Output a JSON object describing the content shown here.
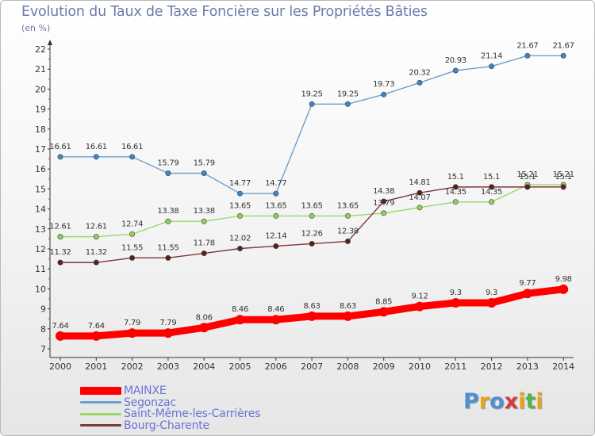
{
  "title": "Evolution du Taux de Taxe Foncière sur les Propriétés Bâties",
  "unit_label": "(en %)",
  "logo": {
    "text": "Proxiti",
    "letters": [
      {
        "ch": "P",
        "color": "#4f8fd0"
      },
      {
        "ch": "r",
        "color": "#e8a21c"
      },
      {
        "ch": "o",
        "color": "#4f8fd0"
      },
      {
        "ch": "x",
        "color": "#d8383b"
      },
      {
        "ch": "i",
        "color": "#e8a21c"
      },
      {
        "ch": "t",
        "color": "#56b348"
      },
      {
        "ch": "i",
        "color": "#e8a21c"
      }
    ]
  },
  "chart_data": {
    "type": "line",
    "title": "Evolution du Taux de Taxe Foncière sur les Propriétés Bâties",
    "ylabel": "(en %)",
    "xlabel": "",
    "x": [
      "2000",
      "2001",
      "2002",
      "2003",
      "2004",
      "2005",
      "2006",
      "2007",
      "2008",
      "2009",
      "2010",
      "2011",
      "2012",
      "2013",
      "2014"
    ],
    "ylim": [
      7,
      22
    ],
    "yticks": [
      7,
      8,
      9,
      10,
      11,
      12,
      13,
      14,
      15,
      16,
      17,
      18,
      19,
      20,
      21,
      22
    ],
    "grid": false,
    "legend_position": "bottom-left",
    "series": [
      {
        "name": "MAINXE",
        "color": "#ff0000",
        "marker": "#ff0000",
        "values": [
          7.64,
          7.64,
          7.79,
          7.79,
          8.06,
          8.46,
          8.46,
          8.63,
          8.63,
          8.85,
          9.12,
          9.3,
          9.3,
          9.77,
          9.98
        ],
        "labels": [
          "7.64",
          "7.64",
          "7.79",
          "7.79",
          "8.06",
          "8.46",
          "8.46",
          "8.63",
          "8.63",
          "8.85",
          "9.12",
          "9.3",
          "9.3",
          "9.77",
          "9.98"
        ]
      },
      {
        "name": "Segonzac",
        "color": "#6b9fcf",
        "marker": "#3e85c6",
        "values": [
          16.61,
          16.61,
          16.61,
          15.79,
          15.79,
          14.77,
          14.77,
          19.25,
          19.25,
          19.73,
          20.32,
          20.93,
          21.14,
          21.67,
          21.67
        ],
        "labels": [
          "16.61",
          "16.61",
          "16.61",
          "15.79",
          "15.79",
          "14.77",
          "14.77",
          "19.25",
          "19.25",
          "19.73",
          "20.32",
          "20.93",
          "21.14",
          "21.67",
          "21.67"
        ]
      },
      {
        "name": "Saint-Même-les-Carrières",
        "color": "#9bd86a",
        "marker": "#8cd35a",
        "values": [
          12.61,
          12.61,
          12.74,
          13.38,
          13.38,
          13.65,
          13.65,
          13.65,
          13.65,
          13.79,
          14.07,
          14.35,
          14.35,
          15.21,
          15.21
        ],
        "labels": [
          "12.61",
          "12.61",
          "12.74",
          "13.38",
          "13.38",
          "13.65",
          "13.65",
          "13.65",
          "13.65",
          "13.79",
          "14.07",
          "14.35",
          "14.35",
          "15.21",
          "15.21"
        ]
      },
      {
        "name": "Bourg-Charente",
        "color": "#7a3a3a",
        "marker": "#5a1f1f",
        "values": [
          11.32,
          11.32,
          11.55,
          11.55,
          11.78,
          12.02,
          12.14,
          12.26,
          12.38,
          14.38,
          14.81,
          15.1,
          15.1,
          15.1,
          15.1
        ],
        "labels": [
          "11.32",
          "11.32",
          "11.55",
          "11.55",
          "11.78",
          "12.02",
          "12.14",
          "12.26",
          "12.38",
          "14.38",
          "14.81",
          "15.1",
          "15.1",
          "15.1",
          "15.1"
        ]
      }
    ]
  }
}
